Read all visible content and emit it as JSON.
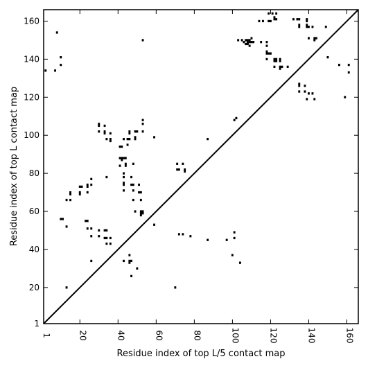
{
  "chart_data": {
    "type": "scatter",
    "title": "",
    "xlabel": "Residue index of top L/5 contact map",
    "ylabel": "Residue index of top L contact map",
    "xlim": [
      1,
      166
    ],
    "ylim": [
      1,
      166
    ],
    "xticks": [
      1,
      20,
      40,
      60,
      80,
      100,
      120,
      140,
      160
    ],
    "yticks": [
      1,
      20,
      40,
      60,
      80,
      100,
      120,
      140,
      160
    ],
    "xtick_rotation": 90,
    "grid": false,
    "marker": "square",
    "marker_color": "#000000",
    "diagonal": {
      "from": [
        1,
        1
      ],
      "to": [
        166,
        166
      ],
      "color": "#000000"
    },
    "series": [
      {
        "region": "upper-left",
        "points": [
          [
            2,
            134
          ],
          [
            7,
            134
          ],
          [
            8,
            154
          ],
          [
            10,
            141
          ],
          [
            10,
            137
          ],
          [
            10,
            56
          ],
          [
            11,
            56
          ],
          [
            13,
            66
          ],
          [
            13,
            52
          ],
          [
            13,
            20
          ],
          [
            15,
            70
          ],
          [
            15,
            69
          ],
          [
            15,
            66
          ],
          [
            20,
            73
          ],
          [
            20,
            70
          ],
          [
            20,
            69
          ],
          [
            21,
            73
          ],
          [
            23,
            55
          ],
          [
            24,
            55
          ],
          [
            24,
            73
          ],
          [
            24,
            74
          ],
          [
            24,
            70
          ],
          [
            24,
            51
          ],
          [
            26,
            77
          ],
          [
            26,
            74
          ],
          [
            26,
            51
          ],
          [
            26,
            47
          ],
          [
            26,
            34
          ],
          [
            30,
            106
          ],
          [
            30,
            105
          ],
          [
            30,
            102
          ],
          [
            30,
            50
          ],
          [
            30,
            47
          ],
          [
            33,
            105
          ],
          [
            33,
            102
          ],
          [
            33,
            101
          ],
          [
            33,
            50
          ],
          [
            33,
            46
          ],
          [
            34,
            98
          ],
          [
            34,
            78
          ],
          [
            34,
            50
          ],
          [
            34,
            46
          ],
          [
            34,
            43
          ],
          [
            36,
            101
          ],
          [
            36,
            98
          ],
          [
            36,
            97
          ],
          [
            36,
            46
          ],
          [
            36,
            43
          ],
          [
            41,
            94
          ],
          [
            41,
            88
          ],
          [
            41,
            84
          ],
          [
            42,
            94
          ],
          [
            42,
            88
          ],
          [
            42,
            87
          ],
          [
            43,
            98
          ],
          [
            43,
            88
          ],
          [
            43,
            80
          ],
          [
            43,
            78
          ],
          [
            43,
            75
          ],
          [
            43,
            74
          ],
          [
            43,
            71
          ],
          [
            43,
            34
          ],
          [
            44,
            88
          ],
          [
            44,
            85
          ],
          [
            44,
            84
          ],
          [
            45,
            98
          ],
          [
            45,
            95
          ],
          [
            46,
            102
          ],
          [
            46,
            101
          ],
          [
            46,
            98
          ],
          [
            46,
            37
          ],
          [
            46,
            34
          ],
          [
            46,
            33
          ],
          [
            47,
            34
          ],
          [
            47,
            78
          ],
          [
            47,
            74
          ],
          [
            47,
            26
          ],
          [
            48,
            85
          ],
          [
            48,
            74
          ],
          [
            48,
            71
          ],
          [
            48,
            66
          ],
          [
            49,
            99
          ],
          [
            49,
            98
          ],
          [
            49,
            102
          ],
          [
            49,
            60
          ],
          [
            50,
            102
          ],
          [
            50,
            30
          ],
          [
            51,
            74
          ],
          [
            51,
            70
          ],
          [
            52,
            70
          ],
          [
            52,
            66
          ],
          [
            52,
            60
          ],
          [
            52,
            59
          ],
          [
            52,
            58
          ],
          [
            53,
            60
          ],
          [
            53,
            59
          ],
          [
            53,
            150
          ],
          [
            53,
            108
          ],
          [
            53,
            106
          ],
          [
            53,
            102
          ],
          [
            59,
            99
          ],
          [
            59,
            53
          ]
        ]
      },
      {
        "region": "lower-right",
        "points": [
          [
            70,
            20
          ],
          [
            71,
            85
          ],
          [
            71,
            82
          ],
          [
            72,
            82
          ],
          [
            72,
            48
          ],
          [
            74,
            48
          ],
          [
            74,
            85
          ],
          [
            75,
            82
          ],
          [
            75,
            81
          ],
          [
            78,
            47
          ],
          [
            87,
            98
          ],
          [
            87,
            45
          ],
          [
            97,
            45
          ],
          [
            100,
            37
          ],
          [
            101,
            108
          ],
          [
            101,
            49
          ],
          [
            101,
            46
          ],
          [
            102,
            109
          ],
          [
            103,
            150
          ],
          [
            104,
            33
          ],
          [
            105,
            150
          ],
          [
            106,
            149
          ],
          [
            107,
            150
          ],
          [
            107,
            148
          ],
          [
            108,
            150
          ],
          [
            108,
            149
          ],
          [
            108,
            148
          ],
          [
            109,
            150
          ],
          [
            109,
            149
          ],
          [
            109,
            147
          ],
          [
            110,
            151
          ],
          [
            110,
            149
          ],
          [
            111,
            149
          ],
          [
            114,
            160
          ],
          [
            115,
            149
          ],
          [
            116,
            160
          ],
          [
            118,
            149
          ],
          [
            118,
            147
          ],
          [
            118,
            144
          ],
          [
            118,
            143
          ],
          [
            118,
            140
          ],
          [
            119,
            164
          ],
          [
            119,
            160
          ],
          [
            119,
            143
          ],
          [
            120,
            160
          ],
          [
            120,
            143
          ],
          [
            121,
            164
          ],
          [
            122,
            162
          ],
          [
            122,
            161
          ],
          [
            122,
            140
          ],
          [
            122,
            139
          ],
          [
            122,
            136
          ],
          [
            123,
            164
          ],
          [
            123,
            161
          ],
          [
            123,
            140
          ],
          [
            123,
            139
          ],
          [
            125,
            140
          ],
          [
            125,
            139
          ],
          [
            125,
            136
          ],
          [
            125,
            135
          ],
          [
            126,
            136
          ],
          [
            129,
            136
          ],
          [
            132,
            161
          ],
          [
            134,
            161
          ],
          [
            135,
            161
          ],
          [
            135,
            158
          ],
          [
            135,
            157
          ],
          [
            135,
            127
          ],
          [
            135,
            126
          ],
          [
            135,
            123
          ],
          [
            138,
            126
          ],
          [
            138,
            123
          ],
          [
            139,
            161
          ],
          [
            139,
            160
          ],
          [
            139,
            158
          ],
          [
            139,
            157
          ],
          [
            139,
            119
          ],
          [
            140,
            157
          ],
          [
            140,
            151
          ],
          [
            140,
            122
          ],
          [
            142,
            122
          ],
          [
            142,
            157
          ],
          [
            143,
            151
          ],
          [
            143,
            150
          ],
          [
            143,
            119
          ],
          [
            144,
            151
          ],
          [
            149,
            157
          ],
          [
            150,
            141
          ],
          [
            156,
            137
          ],
          [
            159,
            120
          ],
          [
            161,
            137
          ],
          [
            161,
            133
          ]
        ]
      }
    ]
  }
}
